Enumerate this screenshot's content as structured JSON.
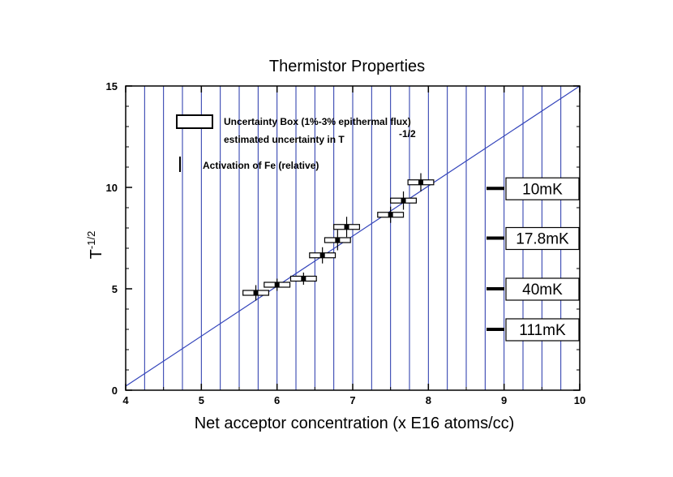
{
  "chart_data": {
    "type": "scatter",
    "title": "Thermistor Properties",
    "xlabel": "Net acceptor concentration (x E16 atoms/cc)",
    "ylabel": "T",
    "ylabel_sup": "-1/2",
    "xlim": [
      4,
      10
    ],
    "ylim": [
      0,
      15
    ],
    "x_ticks": [
      4,
      5,
      6,
      7,
      8,
      9,
      10
    ],
    "y_ticks": [
      0,
      5,
      10,
      15
    ],
    "x_tick_labels": [
      "4",
      "5",
      "6",
      "7",
      "8",
      "9",
      "10"
    ],
    "y_tick_labels": [
      "0",
      "5",
      "10",
      "15"
    ],
    "grid": "vertical",
    "colors": {
      "grid": "#2233aa",
      "fit_line": "#3344bb",
      "points": "#000000"
    },
    "legend": {
      "box_label": "Uncertainty Box (1%-3% epithermal flux)",
      "t_label_main": "estimated uncertainty in T",
      "t_label_sup": "-1/2",
      "bar_label": "Activation of Fe (relative)"
    },
    "fit_line": {
      "x": [
        4,
        10
      ],
      "y": [
        0.2,
        15
      ]
    },
    "points": [
      {
        "x": 5.72,
        "y": 4.8,
        "dx": 0.17,
        "dy": 0.38
      },
      {
        "x": 6.0,
        "y": 5.2,
        "dx": 0.17,
        "dy": 0.3
      },
      {
        "x": 6.35,
        "y": 5.5,
        "dx": 0.17,
        "dy": 0.3
      },
      {
        "x": 6.6,
        "y": 6.65,
        "dx": 0.17,
        "dy": 0.4
      },
      {
        "x": 6.8,
        "y": 7.4,
        "dx": 0.17,
        "dy": 0.5
      },
      {
        "x": 6.92,
        "y": 8.05,
        "dx": 0.17,
        "dy": 0.5
      },
      {
        "x": 7.5,
        "y": 8.65,
        "dx": 0.17,
        "dy": 0.4
      },
      {
        "x": 7.67,
        "y": 9.35,
        "dx": 0.17,
        "dy": 0.45
      },
      {
        "x": 7.9,
        "y": 10.25,
        "dx": 0.17,
        "dy": 0.45
      }
    ],
    "temperature_markers": [
      {
        "label": "10mK",
        "y": 9.95
      },
      {
        "label": "17.8mK",
        "y": 7.5
      },
      {
        "label": "40mK",
        "y": 5.0
      },
      {
        "label": "111mK",
        "y": 3.0
      }
    ]
  }
}
